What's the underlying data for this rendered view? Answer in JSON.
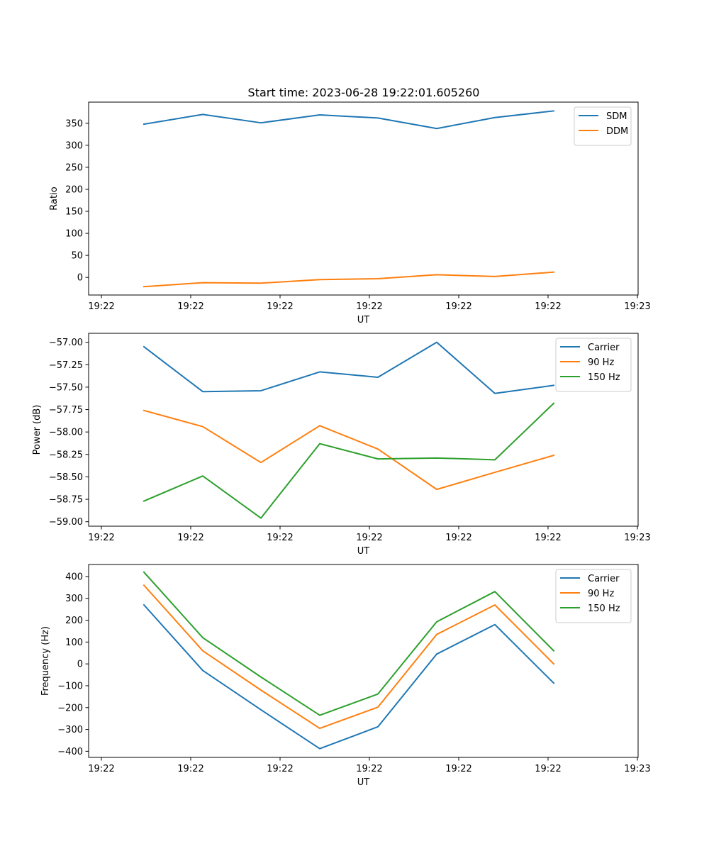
{
  "title": "Start time: 2023-06-28 19:22:01.605260",
  "colors": {
    "blue": "#1f77b4",
    "orange": "#ff7f0e",
    "green": "#2ca02c"
  },
  "chart_data": [
    {
      "type": "line",
      "xlabel": "UT",
      "ylabel": "Ratio",
      "x_tick_labels": [
        "19:22",
        "19:22",
        "19:22",
        "19:22",
        "19:22",
        "19:22",
        "19:23"
      ],
      "y_ticks": [
        0,
        50,
        100,
        150,
        200,
        250,
        300,
        350
      ],
      "y_tick_labels": [
        "0",
        "50",
        "100",
        "150",
        "200",
        "250",
        "300",
        "350"
      ],
      "ylim": [
        -40,
        398
      ],
      "legend_location": "upper right",
      "series": [
        {
          "name": "SDM",
          "color": "#1f77b4",
          "values": [
            348,
            370,
            351,
            369,
            362,
            338,
            363,
            378
          ]
        },
        {
          "name": "DDM",
          "color": "#ff7f0e",
          "values": [
            -21,
            -12,
            -13,
            -5,
            -3,
            6,
            2,
            12
          ]
        }
      ]
    },
    {
      "type": "line",
      "xlabel": "UT",
      "ylabel": "Power (dB)",
      "x_tick_labels": [
        "19:22",
        "19:22",
        "19:22",
        "19:22",
        "19:22",
        "19:22",
        "19:23"
      ],
      "y_ticks": [
        -59.0,
        -58.75,
        -58.5,
        -58.25,
        -58.0,
        -57.75,
        -57.5,
        -57.25,
        -57.0
      ],
      "y_tick_labels": [
        "−59.00",
        "−58.75",
        "−58.50",
        "−58.25",
        "−58.00",
        "−57.75",
        "−57.50",
        "−57.25",
        "−57.00"
      ],
      "ylim": [
        -59.05,
        -56.9
      ],
      "legend_location": "upper right",
      "series": [
        {
          "name": "Carrier",
          "color": "#1f77b4",
          "values": [
            -57.05,
            -57.55,
            -57.54,
            -57.33,
            -57.39,
            -57.0,
            -57.57,
            -57.48
          ]
        },
        {
          "name": "90 Hz",
          "color": "#ff7f0e",
          "values": [
            -57.76,
            -57.94,
            -58.34,
            -57.93,
            -58.19,
            -58.64,
            -58.45,
            -58.26
          ]
        },
        {
          "name": "150 Hz",
          "color": "#2ca02c",
          "values": [
            -58.77,
            -58.49,
            -58.96,
            -58.13,
            -58.3,
            -58.29,
            -58.31,
            -57.68
          ]
        }
      ]
    },
    {
      "type": "line",
      "xlabel": "UT",
      "ylabel": "Frequency (Hz)",
      "x_tick_labels": [
        "19:22",
        "19:22",
        "19:22",
        "19:22",
        "19:22",
        "19:22",
        "19:23"
      ],
      "y_ticks": [
        -400,
        -300,
        -200,
        -100,
        0,
        100,
        200,
        300,
        400
      ],
      "y_tick_labels": [
        "−400",
        "−300",
        "−200",
        "−100",
        "0",
        "100",
        "200",
        "300",
        "400"
      ],
      "ylim": [
        -428,
        455
      ],
      "legend_location": "upper right",
      "series": [
        {
          "name": "Carrier",
          "color": "#1f77b4",
          "values": [
            270,
            -30,
            -210,
            -388,
            -288,
            45,
            180,
            -88
          ]
        },
        {
          "name": "90 Hz",
          "color": "#ff7f0e",
          "values": [
            360,
            60,
            -120,
            -295,
            -198,
            135,
            270,
            0
          ]
        },
        {
          "name": "150 Hz",
          "color": "#2ca02c",
          "values": [
            420,
            120,
            -60,
            -235,
            -138,
            193,
            331,
            60
          ]
        }
      ]
    }
  ]
}
